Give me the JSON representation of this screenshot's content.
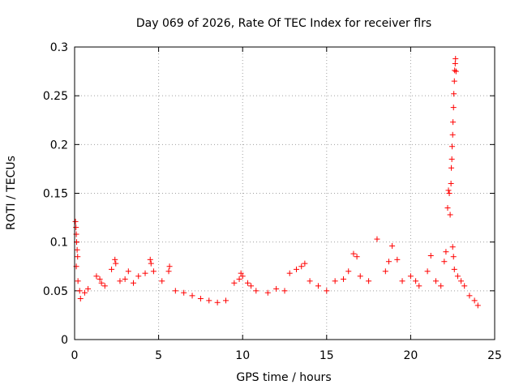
{
  "chart_data": {
    "type": "scatter",
    "title": "Day 069 of 2026, Rate Of TEC Index for receiver flrs",
    "xlabel": "GPS time / hours",
    "ylabel": "ROTI / TECUs",
    "xlim": [
      0,
      25
    ],
    "ylim": [
      0,
      0.3
    ],
    "x_ticks": [
      "0",
      "5",
      "10",
      "15",
      "20",
      "25"
    ],
    "y_ticks": [
      "0",
      "0.05",
      "0.1",
      "0.15",
      "0.2",
      "0.25",
      "0.3"
    ],
    "grid": true,
    "legend": "none",
    "marker": "plus",
    "color": "#ff0000",
    "series": [
      {
        "points": [
          [
            0.05,
            0.121
          ],
          [
            0.08,
            0.115
          ],
          [
            0.1,
            0.108
          ],
          [
            0.12,
            0.1
          ],
          [
            0.15,
            0.092
          ],
          [
            0.18,
            0.085
          ],
          [
            0.1,
            0.075
          ],
          [
            0.2,
            0.06
          ],
          [
            0.3,
            0.05
          ],
          [
            0.35,
            0.042
          ],
          [
            0.6,
            0.048
          ],
          [
            0.8,
            0.052
          ],
          [
            1.3,
            0.065
          ],
          [
            1.5,
            0.062
          ],
          [
            1.6,
            0.058
          ],
          [
            1.8,
            0.055
          ],
          [
            2.2,
            0.072
          ],
          [
            2.4,
            0.082
          ],
          [
            2.45,
            0.078
          ],
          [
            2.7,
            0.06
          ],
          [
            3.0,
            0.062
          ],
          [
            3.2,
            0.07
          ],
          [
            3.5,
            0.058
          ],
          [
            3.8,
            0.065
          ],
          [
            4.2,
            0.068
          ],
          [
            4.5,
            0.082
          ],
          [
            4.55,
            0.078
          ],
          [
            4.7,
            0.07
          ],
          [
            5.2,
            0.06
          ],
          [
            5.6,
            0.07
          ],
          [
            5.65,
            0.075
          ],
          [
            6.0,
            0.05
          ],
          [
            6.5,
            0.048
          ],
          [
            7.0,
            0.045
          ],
          [
            7.5,
            0.042
          ],
          [
            8.0,
            0.04
          ],
          [
            8.5,
            0.038
          ],
          [
            9.0,
            0.04
          ],
          [
            9.5,
            0.058
          ],
          [
            9.8,
            0.062
          ],
          [
            9.9,
            0.068
          ],
          [
            10.0,
            0.065
          ],
          [
            10.3,
            0.058
          ],
          [
            10.5,
            0.055
          ],
          [
            10.8,
            0.05
          ],
          [
            11.5,
            0.048
          ],
          [
            12.0,
            0.052
          ],
          [
            12.5,
            0.05
          ],
          [
            12.8,
            0.068
          ],
          [
            13.2,
            0.072
          ],
          [
            13.5,
            0.075
          ],
          [
            13.7,
            0.078
          ],
          [
            14.0,
            0.06
          ],
          [
            14.5,
            0.055
          ],
          [
            15.0,
            0.05
          ],
          [
            15.5,
            0.06
          ],
          [
            16.0,
            0.062
          ],
          [
            16.3,
            0.07
          ],
          [
            16.6,
            0.088
          ],
          [
            16.8,
            0.085
          ],
          [
            17.0,
            0.065
          ],
          [
            17.5,
            0.06
          ],
          [
            18.0,
            0.103
          ],
          [
            18.5,
            0.07
          ],
          [
            18.7,
            0.08
          ],
          [
            18.9,
            0.096
          ],
          [
            19.2,
            0.082
          ],
          [
            19.5,
            0.06
          ],
          [
            20.0,
            0.065
          ],
          [
            20.3,
            0.06
          ],
          [
            20.5,
            0.055
          ],
          [
            21.0,
            0.07
          ],
          [
            21.2,
            0.086
          ],
          [
            21.5,
            0.06
          ],
          [
            21.8,
            0.055
          ],
          [
            22.0,
            0.08
          ],
          [
            22.1,
            0.09
          ],
          [
            22.2,
            0.135
          ],
          [
            22.25,
            0.153
          ],
          [
            22.3,
            0.15
          ],
          [
            22.35,
            0.128
          ],
          [
            22.4,
            0.16
          ],
          [
            22.42,
            0.176
          ],
          [
            22.45,
            0.185
          ],
          [
            22.47,
            0.198
          ],
          [
            22.5,
            0.21
          ],
          [
            22.52,
            0.223
          ],
          [
            22.55,
            0.238
          ],
          [
            22.57,
            0.252
          ],
          [
            22.6,
            0.265
          ],
          [
            22.62,
            0.276
          ],
          [
            22.65,
            0.283
          ],
          [
            22.67,
            0.288
          ],
          [
            22.7,
            0.275
          ],
          [
            22.5,
            0.095
          ],
          [
            22.55,
            0.085
          ],
          [
            22.6,
            0.072
          ],
          [
            22.8,
            0.065
          ],
          [
            23.0,
            0.06
          ],
          [
            23.2,
            0.055
          ],
          [
            23.5,
            0.045
          ],
          [
            23.8,
            0.04
          ],
          [
            24.0,
            0.035
          ]
        ]
      }
    ]
  }
}
